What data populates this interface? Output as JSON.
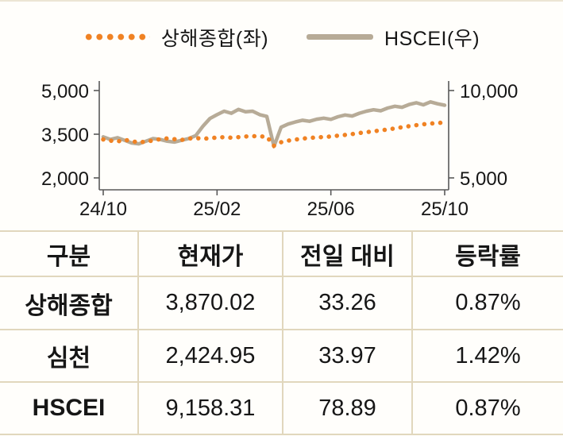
{
  "chart_data": {
    "type": "line",
    "x_unit": "months from 24/10 to 25/10",
    "x_ticks": [
      {
        "pos": 0,
        "label": "24/10"
      },
      {
        "pos": 4,
        "label": "25/02"
      },
      {
        "pos": 8,
        "label": "25/06"
      },
      {
        "pos": 12,
        "label": "25/10"
      }
    ],
    "left_axis": {
      "min": 2000,
      "max": 5000,
      "ticks": [
        {
          "v": 5000,
          "label": "5,000"
        },
        {
          "v": 3500,
          "label": "3,500"
        },
        {
          "v": 2000,
          "label": "2,000"
        }
      ]
    },
    "right_axis": {
      "min": 5000,
      "max": 10000,
      "ticks": [
        {
          "v": 10000,
          "label": "10,000"
        },
        {
          "v": 5000,
          "label": "5,000"
        }
      ]
    },
    "series": [
      {
        "name": "상해종합(좌)",
        "axis": "left",
        "style": "dotted",
        "color": "#f08223",
        "values": [
          3320,
          3280,
          3250,
          3310,
          3260,
          3220,
          3245,
          3285,
          3330,
          3355,
          3330,
          3300,
          3350,
          3370,
          3345,
          3360,
          3385,
          3400,
          3380,
          3400,
          3420,
          3435,
          3425,
          3415,
          3105,
          3225,
          3280,
          3315,
          3350,
          3370,
          3390,
          3405,
          3420,
          3450,
          3475,
          3505,
          3540,
          3570,
          3600,
          3630,
          3665,
          3700,
          3740,
          3775,
          3810,
          3840,
          3865,
          3885,
          3900
        ]
      },
      {
        "name": "HSCEI(우)",
        "axis": "right",
        "style": "solid",
        "color": "#b7ab97",
        "values": [
          7350,
          7200,
          7300,
          7150,
          7000,
          6950,
          7100,
          7250,
          7200,
          7100,
          7050,
          7150,
          7250,
          7420,
          7950,
          8400,
          8620,
          8820,
          8700,
          8920,
          8780,
          8820,
          8620,
          8520,
          6800,
          7900,
          8080,
          8200,
          8300,
          8240,
          8360,
          8420,
          8350,
          8500,
          8600,
          8540,
          8700,
          8820,
          8900,
          8840,
          9000,
          9100,
          9040,
          9200,
          9300,
          9180,
          9350,
          9240,
          9160
        ]
      }
    ],
    "grid": "off",
    "legend_position": "top-center"
  },
  "table": {
    "headers": [
      "구분",
      "현재가",
      "전일 대비",
      "등락률"
    ],
    "rows": [
      [
        "상해종합",
        "3,870.02",
        "33.26",
        "0.87%"
      ],
      [
        "심천",
        "2,424.95",
        "33.97",
        "1.42%"
      ],
      [
        "HSCEI",
        "9,158.31",
        "78.89",
        "0.87%"
      ]
    ]
  },
  "colors": {
    "shanghai_line": "#f08223",
    "hscei_line": "#b7ab97",
    "table_border": "#e1d7bd",
    "axis": "#595959"
  }
}
